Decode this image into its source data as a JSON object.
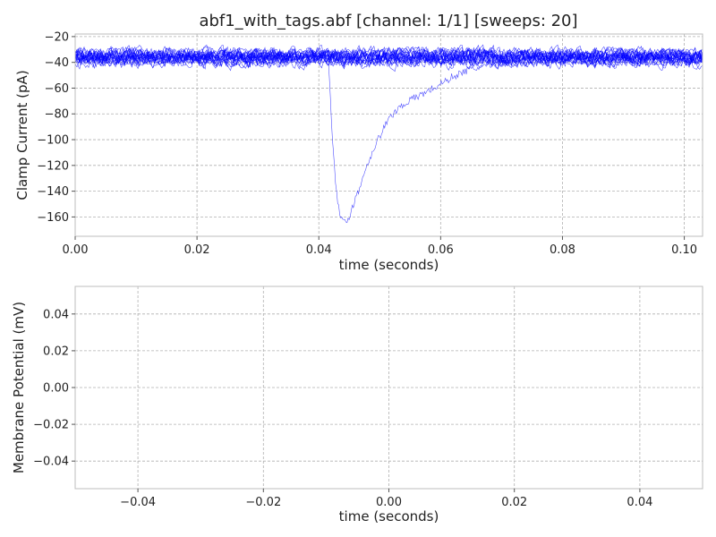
{
  "chart_data": [
    {
      "type": "line",
      "title": "abf1_with_tags.abf [channel: 1/1] [sweeps: 20]",
      "xlabel": "time (seconds)",
      "ylabel": "Clamp Current (pA)",
      "xlim": [
        0,
        0.103
      ],
      "ylim": [
        -175,
        -18
      ],
      "xticks": [
        0.0,
        0.02,
        0.04,
        0.06,
        0.08,
        0.1
      ],
      "xtick_labels": [
        "0.00",
        "0.02",
        "0.04",
        "0.06",
        "0.08",
        "0.10"
      ],
      "yticks": [
        -20,
        -40,
        -60,
        -80,
        -100,
        -120,
        -140,
        -160
      ],
      "ytick_labels": [
        "−20",
        "−40",
        "−60",
        "−80",
        "−100",
        "−120",
        "−140",
        "−160"
      ],
      "grid": true,
      "color": "#0000ff",
      "sweep_count": 20,
      "baseline_sweeps": {
        "mean": -36,
        "noise_range": [
          -47,
          -26
        ]
      },
      "event_sweep": {
        "x": [
          0.0,
          0.0415,
          0.0418,
          0.0422,
          0.0428,
          0.0433,
          0.0438,
          0.0442,
          0.0448,
          0.0455,
          0.0465,
          0.048,
          0.0495,
          0.051,
          0.0525,
          0.054,
          0.056,
          0.058,
          0.06,
          0.062,
          0.0645,
          0.067,
          0.0695,
          0.072,
          0.103
        ],
        "y": [
          -36,
          -36,
          -55,
          -95,
          -135,
          -155,
          -163,
          -165,
          -162,
          -152,
          -140,
          -118,
          -102,
          -88,
          -78,
          -72,
          -67,
          -62,
          -57,
          -51,
          -46,
          -43,
          -40,
          -37,
          -36
        ]
      }
    },
    {
      "type": "line",
      "title": "",
      "xlabel": "time (seconds)",
      "ylabel": "Membrane Potential (mV)",
      "xlim": [
        -0.05,
        0.05
      ],
      "ylim": [
        -0.055,
        0.055
      ],
      "xticks": [
        -0.04,
        -0.02,
        0.0,
        0.02,
        0.04
      ],
      "xtick_labels": [
        "−0.04",
        "−0.02",
        "0.00",
        "0.02",
        "0.04"
      ],
      "yticks": [
        0.04,
        0.02,
        0.0,
        -0.02,
        -0.04
      ],
      "ytick_labels": [
        "0.04",
        "0.02",
        "0.00",
        "−0.02",
        "−0.04"
      ],
      "grid": true,
      "series": []
    }
  ]
}
